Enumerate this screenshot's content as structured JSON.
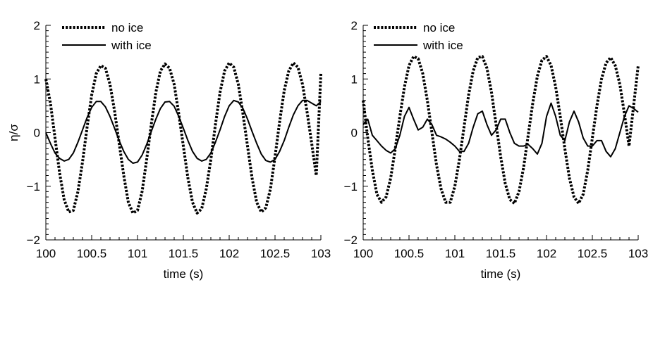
{
  "chart_data": [
    {
      "type": "line",
      "panel": "left",
      "xlabel": "time (s)",
      "ylabel": "η/σ",
      "xlim": [
        100,
        103
      ],
      "ylim": [
        -2,
        2
      ],
      "xticks": [
        100,
        100.5,
        101,
        101.5,
        102,
        102.5,
        103
      ],
      "xtick_labels": [
        "100",
        "100.5",
        "101",
        "101.5",
        "102",
        "102.5",
        "103"
      ],
      "yticks": [
        -2,
        -1,
        0,
        1,
        2
      ],
      "ytick_labels": [
        "−2",
        "−1",
        "0",
        "1",
        "2"
      ],
      "grid": false,
      "legend_position": "top-left",
      "series": [
        {
          "name": "no ice",
          "style": "dotted",
          "color": "#000000",
          "x": [
            100.0,
            100.05,
            100.1,
            100.15,
            100.2,
            100.25,
            100.3,
            100.35,
            100.4,
            100.45,
            100.5,
            100.55,
            100.6,
            100.65,
            100.7,
            100.75,
            100.8,
            100.85,
            100.9,
            100.95,
            101.0,
            101.05,
            101.1,
            101.15,
            101.2,
            101.25,
            101.3,
            101.35,
            101.4,
            101.45,
            101.5,
            101.55,
            101.6,
            101.65,
            101.7,
            101.75,
            101.8,
            101.85,
            101.9,
            101.95,
            102.0,
            102.05,
            102.1,
            102.15,
            102.2,
            102.25,
            102.3,
            102.35,
            102.4,
            102.45,
            102.5,
            102.55,
            102.6,
            102.65,
            102.7,
            102.75,
            102.8,
            102.85,
            102.9,
            102.95,
            103.0
          ],
          "y": [
            1.0,
            0.55,
            -0.1,
            -0.75,
            -1.25,
            -1.48,
            -1.45,
            -1.1,
            -0.55,
            0.1,
            0.7,
            1.1,
            1.25,
            1.2,
            0.9,
            0.4,
            -0.2,
            -0.8,
            -1.3,
            -1.5,
            -1.45,
            -1.1,
            -0.5,
            0.15,
            0.75,
            1.15,
            1.28,
            1.2,
            0.9,
            0.35,
            -0.25,
            -0.85,
            -1.3,
            -1.5,
            -1.42,
            -1.05,
            -0.5,
            0.15,
            0.75,
            1.15,
            1.3,
            1.22,
            0.9,
            0.35,
            -0.25,
            -0.85,
            -1.3,
            -1.48,
            -1.4,
            -1.05,
            -0.45,
            0.2,
            0.78,
            1.15,
            1.3,
            1.22,
            0.9,
            0.38,
            -0.2,
            -0.8,
            1.1
          ]
        },
        {
          "name": "with ice",
          "style": "solid",
          "color": "#000000",
          "x": [
            100.0,
            100.05,
            100.1,
            100.15,
            100.2,
            100.25,
            100.3,
            100.35,
            100.4,
            100.45,
            100.5,
            100.55,
            100.6,
            100.65,
            100.7,
            100.75,
            100.8,
            100.85,
            100.9,
            100.95,
            101.0,
            101.05,
            101.1,
            101.15,
            101.2,
            101.25,
            101.3,
            101.35,
            101.4,
            101.45,
            101.5,
            101.55,
            101.6,
            101.65,
            101.7,
            101.75,
            101.8,
            101.85,
            101.9,
            101.95,
            102.0,
            102.05,
            102.1,
            102.15,
            102.2,
            102.25,
            102.3,
            102.35,
            102.4,
            102.45,
            102.5,
            102.55,
            102.6,
            102.65,
            102.7,
            102.75,
            102.8,
            102.85,
            102.9,
            102.95,
            103.0
          ],
          "y": [
            0.0,
            -0.2,
            -0.38,
            -0.48,
            -0.53,
            -0.5,
            -0.38,
            -0.18,
            0.05,
            0.28,
            0.47,
            0.58,
            0.58,
            0.48,
            0.3,
            0.08,
            -0.15,
            -0.35,
            -0.5,
            -0.57,
            -0.55,
            -0.42,
            -0.22,
            0.02,
            0.25,
            0.45,
            0.57,
            0.58,
            0.49,
            0.3,
            0.08,
            -0.15,
            -0.35,
            -0.48,
            -0.53,
            -0.5,
            -0.38,
            -0.18,
            0.05,
            0.3,
            0.5,
            0.6,
            0.57,
            0.45,
            0.25,
            0.02,
            -0.2,
            -0.4,
            -0.52,
            -0.55,
            -0.5,
            -0.35,
            -0.15,
            0.1,
            0.33,
            0.5,
            0.6,
            0.6,
            0.55,
            0.5,
            0.58
          ]
        }
      ]
    },
    {
      "type": "line",
      "panel": "right",
      "xlabel": "time (s)",
      "ylabel": "",
      "xlim": [
        100,
        103
      ],
      "ylim": [
        -2,
        2
      ],
      "xticks": [
        100,
        100.5,
        101,
        101.5,
        102,
        102.5,
        103
      ],
      "xtick_labels": [
        "100",
        "100.5",
        "101",
        "101.5",
        "102",
        "102.5",
        "103"
      ],
      "yticks": [
        -2,
        -1,
        0,
        1,
        2
      ],
      "ytick_labels": [
        "−2",
        "−1",
        "0",
        "1",
        "2"
      ],
      "grid": false,
      "legend_position": "top-left",
      "series": [
        {
          "name": "no ice",
          "style": "dotted",
          "color": "#000000",
          "x": [
            100.0,
            100.05,
            100.1,
            100.15,
            100.2,
            100.25,
            100.3,
            100.35,
            100.4,
            100.45,
            100.5,
            100.55,
            100.6,
            100.65,
            100.7,
            100.75,
            100.8,
            100.85,
            100.9,
            100.95,
            101.0,
            101.05,
            101.1,
            101.15,
            101.2,
            101.25,
            101.3,
            101.35,
            101.4,
            101.45,
            101.5,
            101.55,
            101.6,
            101.65,
            101.7,
            101.75,
            101.8,
            101.85,
            101.9,
            101.95,
            102.0,
            102.05,
            102.1,
            102.15,
            102.2,
            102.25,
            102.3,
            102.35,
            102.4,
            102.45,
            102.5,
            102.55,
            102.6,
            102.65,
            102.7,
            102.75,
            102.8,
            102.85,
            102.9,
            102.95,
            103.0
          ],
          "y": [
            0.6,
            -0.1,
            -0.7,
            -1.15,
            -1.3,
            -1.2,
            -0.85,
            -0.3,
            0.3,
            0.85,
            1.25,
            1.42,
            1.38,
            1.1,
            0.6,
            0.0,
            -0.6,
            -1.05,
            -1.3,
            -1.3,
            -1.0,
            -0.5,
            0.1,
            0.7,
            1.15,
            1.4,
            1.42,
            1.2,
            0.75,
            0.15,
            -0.45,
            -0.95,
            -1.25,
            -1.32,
            -1.1,
            -0.65,
            -0.05,
            0.55,
            1.05,
            1.35,
            1.42,
            1.25,
            0.85,
            0.3,
            -0.3,
            -0.85,
            -1.2,
            -1.32,
            -1.15,
            -0.7,
            -0.1,
            0.5,
            1.0,
            1.3,
            1.4,
            1.25,
            0.9,
            0.35,
            -0.25,
            0.5,
            1.25
          ]
        },
        {
          "name": "with ice",
          "style": "solid",
          "color": "#000000",
          "x": [
            100.0,
            100.05,
            100.1,
            100.15,
            100.2,
            100.25,
            100.3,
            100.35,
            100.4,
            100.45,
            100.5,
            100.55,
            100.6,
            100.65,
            100.7,
            100.75,
            100.8,
            100.85,
            100.9,
            100.95,
            101.0,
            101.05,
            101.1,
            101.15,
            101.2,
            101.25,
            101.3,
            101.35,
            101.4,
            101.45,
            101.5,
            101.55,
            101.6,
            101.65,
            101.7,
            101.75,
            101.8,
            101.85,
            101.9,
            101.95,
            102.0,
            102.05,
            102.1,
            102.15,
            102.2,
            102.25,
            102.3,
            102.35,
            102.4,
            102.45,
            102.5,
            102.55,
            102.6,
            102.65,
            102.7,
            102.75,
            102.8,
            102.85,
            102.9,
            102.95,
            103.0
          ],
          "y": [
            0.15,
            0.25,
            -0.05,
            -0.15,
            -0.25,
            -0.33,
            -0.38,
            -0.3,
            -0.05,
            0.3,
            0.47,
            0.25,
            0.05,
            0.1,
            0.25,
            0.15,
            -0.05,
            -0.08,
            -0.12,
            -0.18,
            -0.25,
            -0.35,
            -0.35,
            -0.2,
            0.1,
            0.35,
            0.4,
            0.15,
            -0.05,
            0.05,
            0.25,
            0.25,
            0.0,
            -0.2,
            -0.25,
            -0.25,
            -0.22,
            -0.3,
            -0.4,
            -0.2,
            0.3,
            0.55,
            0.3,
            -0.05,
            -0.15,
            0.2,
            0.4,
            0.2,
            -0.1,
            -0.25,
            -0.25,
            -0.15,
            -0.15,
            -0.35,
            -0.45,
            -0.3,
            0.0,
            0.3,
            0.5,
            0.45,
            0.38
          ]
        }
      ]
    }
  ]
}
